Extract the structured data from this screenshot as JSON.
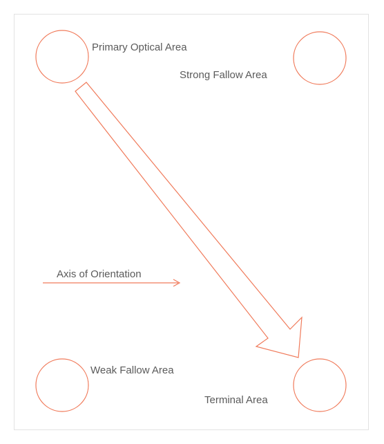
{
  "labels": {
    "primary_optical_area": "Primary Optical Area",
    "strong_fallow_area": "Strong Fallow Area",
    "axis_of_orientation": "Axis of Orientation",
    "weak_fallow_area": "Weak Fallow Area",
    "terminal_area": "Terminal Area"
  },
  "colors": {
    "stroke": "#f07a5a",
    "text": "#5a5a5a",
    "frame_border": "#e2e2e2",
    "background": "#ffffff"
  }
}
